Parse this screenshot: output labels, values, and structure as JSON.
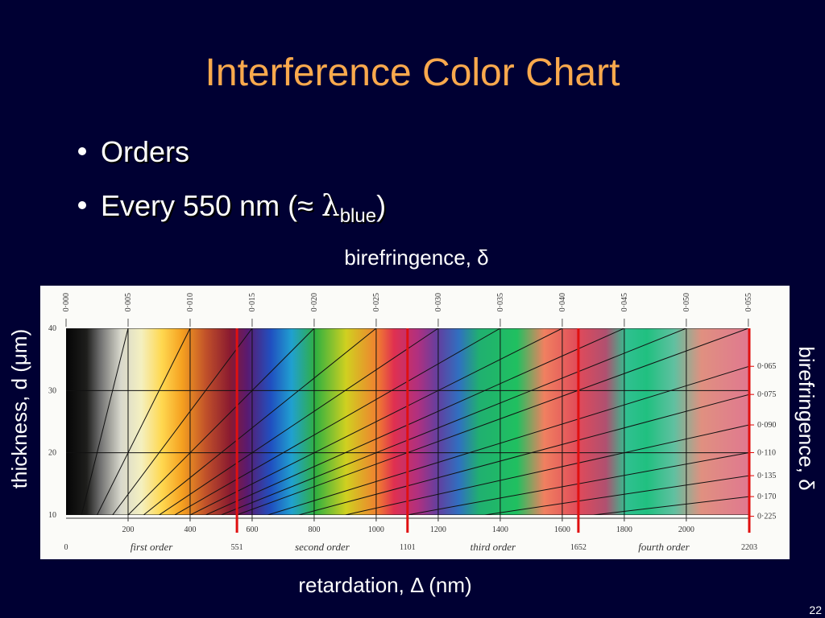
{
  "slide": {
    "title": "Interference Color Chart",
    "bullets": [
      {
        "text": "Orders"
      },
      {
        "text": "Every 550 nm (≈ ",
        "symbol": "λ",
        "subscript": "blue",
        "close": ")"
      }
    ],
    "page_number": "22"
  },
  "chart": {
    "top_label": "birefringence, δ",
    "left_label": "thickness, d (μm)",
    "right_label": "birefringence, δ",
    "bottom_label": "retardation, Δ (nm)",
    "xlim": [
      0,
      2203
    ],
    "ylim": [
      10,
      40
    ],
    "thickness_ticks": [
      10,
      20,
      30,
      40
    ],
    "retardation_ticks": [
      200,
      400,
      600,
      800,
      1000,
      1200,
      1400,
      1600,
      1800,
      2000
    ],
    "order_boundaries": [
      0,
      551,
      1101,
      1652,
      2203
    ],
    "orders": [
      "first order",
      "second order",
      "third order",
      "fourth order"
    ],
    "top_ticks": [
      {
        "value": 0.0,
        "label": "0·000"
      },
      {
        "value": 0.005,
        "label": "0·005"
      },
      {
        "value": 0.01,
        "label": "0·010"
      },
      {
        "value": 0.015,
        "label": "0·015"
      },
      {
        "value": 0.02,
        "label": "0·020"
      },
      {
        "value": 0.025,
        "label": "0·025"
      },
      {
        "value": 0.03,
        "label": "0·030"
      },
      {
        "value": 0.035,
        "label": "0·035"
      },
      {
        "value": 0.04,
        "label": "0·040"
      },
      {
        "value": 0.045,
        "label": "0·045"
      },
      {
        "value": 0.05,
        "label": "0·050"
      },
      {
        "value": 0.055,
        "label": "0·055"
      }
    ],
    "right_ticks": [
      {
        "value": 0.065,
        "label": "0·065"
      },
      {
        "value": 0.075,
        "label": "0·075"
      },
      {
        "value": 0.09,
        "label": "0·090"
      },
      {
        "value": 0.11,
        "label": "0·110"
      },
      {
        "value": 0.135,
        "label": "0·135"
      },
      {
        "value": 0.17,
        "label": "0·170"
      },
      {
        "value": 0.225,
        "label": "0·225"
      }
    ]
  }
}
